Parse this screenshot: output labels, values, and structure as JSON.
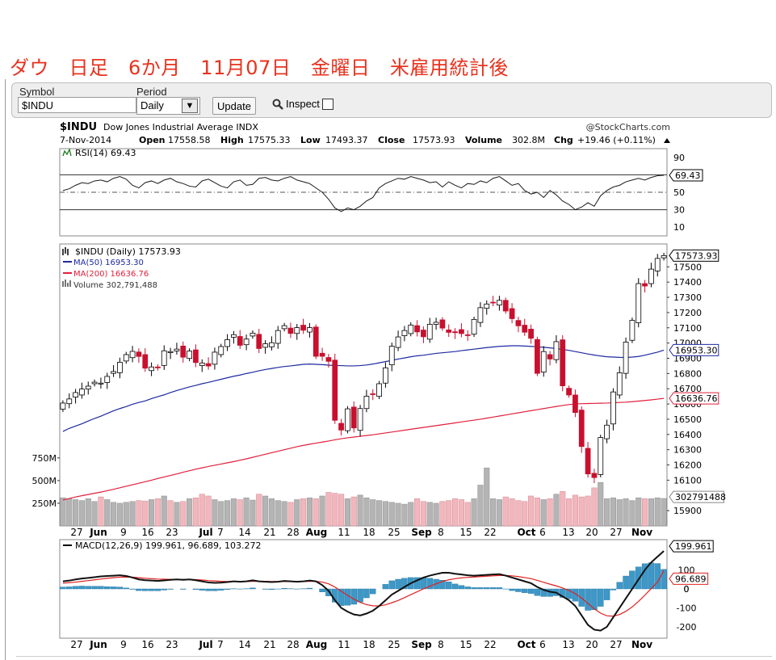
{
  "page_title": "ダウ　日足　6か月　11月07日　金曜日　米雇用統計後",
  "form": {
    "symbol_label": "Symbol",
    "symbol_value": "$INDU",
    "period_label": "Period",
    "period_value": "Daily",
    "update_label": "Update",
    "inspect_label": "Inspect"
  },
  "header": {
    "symbol": "$INDU",
    "name": "Dow Jones Industrial Average INDX",
    "source": "@StockCharts.com",
    "date": "7-Nov-2014",
    "open_label": "Open",
    "open": "17558.58",
    "high_label": "High",
    "high": "17575.33",
    "low_label": "Low",
    "low": "17493.37",
    "close_label": "Close",
    "close": "17573.93",
    "volume_label": "Volume",
    "volume": "302.8M",
    "chg_label": "Chg",
    "chg": "+19.46 (+0.11%)"
  },
  "colors": {
    "up": "#ffffff",
    "down": "#c8102e",
    "ma50": "#1f2aa0",
    "ma200": "#e0203c",
    "volume_up": "#b4b4b4",
    "volume_down": "#f2b6bd",
    "macd_hist": "#3d98c8",
    "signal": "#e02020"
  },
  "chart_data": [
    {
      "type": "line",
      "panel": "rsi",
      "legend": "RSI(14) 69.43",
      "last_value_label": "69.43",
      "ylim": [
        0,
        100
      ],
      "yticks": [
        "90",
        "70",
        "50",
        "30",
        "10"
      ],
      "reference_lines": [
        70,
        50,
        30
      ],
      "values": [
        52,
        54,
        58,
        61,
        60,
        63,
        64,
        62,
        66,
        68,
        65,
        58,
        55,
        61,
        63,
        60,
        64,
        66,
        62,
        60,
        57,
        56,
        63,
        65,
        61,
        57,
        55,
        62,
        64,
        58,
        59,
        66,
        67,
        64,
        63,
        66,
        68,
        64,
        62,
        60,
        55,
        50,
        42,
        32,
        28,
        32,
        30,
        34,
        40,
        44,
        55,
        60,
        63,
        66,
        65,
        68,
        66,
        64,
        61,
        62,
        56,
        62,
        58,
        55,
        60,
        59,
        63,
        61,
        66,
        68,
        63,
        58,
        60,
        52,
        48,
        50,
        44,
        52,
        47,
        40,
        36,
        30,
        33,
        38,
        34,
        46,
        52,
        56,
        58,
        62,
        64,
        66,
        64,
        67,
        69,
        69.43
      ]
    },
    {
      "type": "candlestick",
      "panel": "price",
      "legend": "$INDU (Daily) 17573.93",
      "ma50_legend": "MA(50) 16953.30",
      "ma200_legend": "MA(200) 16636.76",
      "volume_legend": "Volume 302,791,488",
      "last_close_label": "17573.93",
      "ma50_label": "16953.30",
      "ma200_label": "16636.76",
      "ylim": [
        15800,
        17650
      ],
      "yticks": [
        "17500",
        "17400",
        "17300",
        "17200",
        "17100",
        "17000",
        "16900",
        "16800",
        "16700",
        "16600",
        "16500",
        "16400",
        "16300",
        "16200",
        "16100",
        "15900"
      ],
      "x_labels": [
        "27",
        "Jun",
        "9",
        "16",
        "23",
        "Jul",
        "7",
        "14",
        "21",
        "28",
        "Aug",
        "11",
        "18",
        "25",
        "Sep",
        "8",
        "15",
        "22",
        "Oct",
        "6",
        "13",
        "20",
        "27",
        "Nov"
      ],
      "closes": [
        16606,
        16633,
        16675,
        16698,
        16717,
        16743,
        16737,
        16781,
        16813,
        16874,
        16924,
        16945,
        16912,
        16835,
        16843,
        16837,
        16949,
        16944,
        16960,
        16907,
        16947,
        16872,
        16869,
        16849,
        16940,
        16977,
        17022,
        17055,
        16985,
        17026,
        17065,
        16964,
        16995,
        17002,
        17082,
        17114,
        17063,
        17101,
        17084,
        17101,
        16913,
        16913,
        16880,
        16493,
        16429,
        16568,
        16443,
        16570,
        16651,
        16662,
        16733,
        16837,
        16979,
        17040,
        17082,
        17118,
        17073,
        17041,
        17123,
        17136,
        17098,
        17070,
        17068,
        17062,
        17050,
        17155,
        17232,
        17256,
        17265,
        17280,
        17210,
        17160,
        17113,
        17071,
        17031,
        16801,
        16944,
        16895,
        17009,
        16719,
        16659,
        16544,
        16321,
        16141,
        16117,
        16380,
        16461,
        16679,
        16805,
        17006,
        17149,
        17390,
        17374,
        17485,
        17555,
        17573.93
      ],
      "ma50": [
        16420,
        16440,
        16455,
        16470,
        16488,
        16505,
        16520,
        16538,
        16555,
        16570,
        16583,
        16598,
        16610,
        16620,
        16635,
        16648,
        16660,
        16675,
        16688,
        16700,
        16712,
        16722,
        16733,
        16742,
        16752,
        16762,
        16772,
        16782,
        16790,
        16800,
        16808,
        16818,
        16826,
        16833,
        16840,
        16846,
        16850,
        16855,
        16860,
        16862,
        16860,
        16858,
        16855,
        16852,
        16852,
        16850,
        16850,
        16852,
        16856,
        16862,
        16870,
        16878,
        16886,
        16895,
        16902,
        16910,
        16916,
        16920,
        16926,
        16932,
        16936,
        16940,
        16944,
        16950,
        16955,
        16960,
        16965,
        16970,
        16974,
        16978,
        16980,
        16982,
        16982,
        16980,
        16978,
        16975,
        16972,
        16968,
        16964,
        16958,
        16952,
        16944,
        16936,
        16928,
        16921,
        16915,
        16910,
        16908,
        16906,
        16905,
        16908,
        16912,
        16920,
        16930,
        16940,
        16953.3
      ],
      "ma200": [
        15970,
        15980,
        15990,
        15998,
        16006,
        16014,
        16022,
        16031,
        16040,
        16050,
        16060,
        16070,
        16080,
        16090,
        16100,
        16111,
        16121,
        16131,
        16141,
        16152,
        16162,
        16172,
        16181,
        16190,
        16198,
        16206,
        16214,
        16222,
        16231,
        16240,
        16250,
        16260,
        16270,
        16280,
        16290,
        16300,
        16310,
        16320,
        16328,
        16336,
        16343,
        16350,
        16357,
        16365,
        16372,
        16378,
        16383,
        16388,
        16393,
        16398,
        16404,
        16410,
        16416,
        16422,
        16428,
        16434,
        16440,
        16446,
        16452,
        16458,
        16464,
        16470,
        16476,
        16482,
        16488,
        16494,
        16500,
        16507,
        16514,
        16521,
        16528,
        16535,
        16542,
        16549,
        16556,
        16563,
        16570,
        16577,
        16584,
        16590,
        16596,
        16600,
        16602,
        16603,
        16604,
        16605,
        16606,
        16608,
        16610,
        16612,
        16615,
        16619,
        16623,
        16627,
        16632,
        16636.76
      ]
    },
    {
      "type": "bar",
      "panel": "volume",
      "ylabel_ticks": [
        "750M",
        "500M",
        "250M"
      ],
      "last_value_label": "302791488",
      "values": [
        310,
        300,
        290,
        280,
        300,
        270,
        320,
        290,
        260,
        250,
        260,
        270,
        280,
        275,
        290,
        300,
        330,
        280,
        260,
        270,
        300,
        310,
        350,
        330,
        290,
        270,
        280,
        300,
        290,
        310,
        285,
        350,
        330,
        300,
        280,
        270,
        260,
        290,
        300,
        310,
        300,
        330,
        370,
        360,
        350,
        300,
        320,
        340,
        310,
        290,
        280,
        270,
        260,
        250,
        240,
        260,
        300,
        270,
        260,
        250,
        270,
        280,
        300,
        290,
        260,
        300,
        450,
        640,
        300,
        290,
        320,
        300,
        280,
        270,
        330,
        310,
        290,
        300,
        350,
        380,
        300,
        340,
        320,
        330,
        420,
        480,
        300,
        310,
        290,
        300,
        280,
        310,
        300,
        300,
        310,
        302.8
      ]
    },
    {
      "type": "line",
      "panel": "macd",
      "legend": "MACD(12,26,9) 199.961, 96.689, 103.272",
      "macd_label": "199.961",
      "signal_label": "96.689",
      "ylim": [
        -260,
        260
      ],
      "yticks": [
        "100",
        "0",
        "-100",
        "-200"
      ],
      "macd": [
        40,
        44,
        50,
        55,
        58,
        62,
        66,
        68,
        70,
        72,
        68,
        60,
        50,
        46,
        44,
        42,
        45,
        48,
        50,
        48,
        50,
        46,
        40,
        34,
        32,
        33,
        36,
        40,
        38,
        40,
        45,
        40,
        38,
        36,
        38,
        42,
        40,
        38,
        40,
        44,
        40,
        20,
        -10,
        -60,
        -100,
        -120,
        -135,
        -140,
        -130,
        -115,
        -90,
        -60,
        -30,
        -10,
        10,
        30,
        45,
        60,
        70,
        78,
        85,
        85,
        80,
        76,
        72,
        70,
        72,
        74,
        76,
        78,
        70,
        60,
        50,
        40,
        30,
        10,
        -5,
        -15,
        -20,
        -40,
        -60,
        -90,
        -140,
        -190,
        -215,
        -220,
        -200,
        -150,
        -100,
        -50,
        0,
        50,
        100,
        140,
        170,
        199.961
      ],
      "signal": [
        30,
        33,
        36,
        40,
        44,
        48,
        52,
        56,
        59,
        62,
        63,
        62,
        59,
        56,
        54,
        52,
        51,
        50,
        50,
        50,
        50,
        49,
        47,
        44,
        42,
        40,
        39,
        39,
        39,
        39,
        40,
        40,
        40,
        39,
        39,
        39,
        39,
        39,
        39,
        40,
        40,
        36,
        27,
        10,
        -12,
        -34,
        -54,
        -71,
        -83,
        -89,
        -90,
        -84,
        -73,
        -61,
        -46,
        -30,
        -15,
        0,
        14,
        27,
        39,
        48,
        54,
        58,
        61,
        63,
        65,
        67,
        69,
        71,
        71,
        69,
        65,
        60,
        54,
        45,
        35,
        25,
        16,
        5,
        -8,
        -25,
        -48,
        -77,
        -105,
        -128,
        -142,
        -144,
        -135,
        -118,
        -95,
        -66,
        -33,
        2,
        36,
        96.689
      ]
    }
  ]
}
